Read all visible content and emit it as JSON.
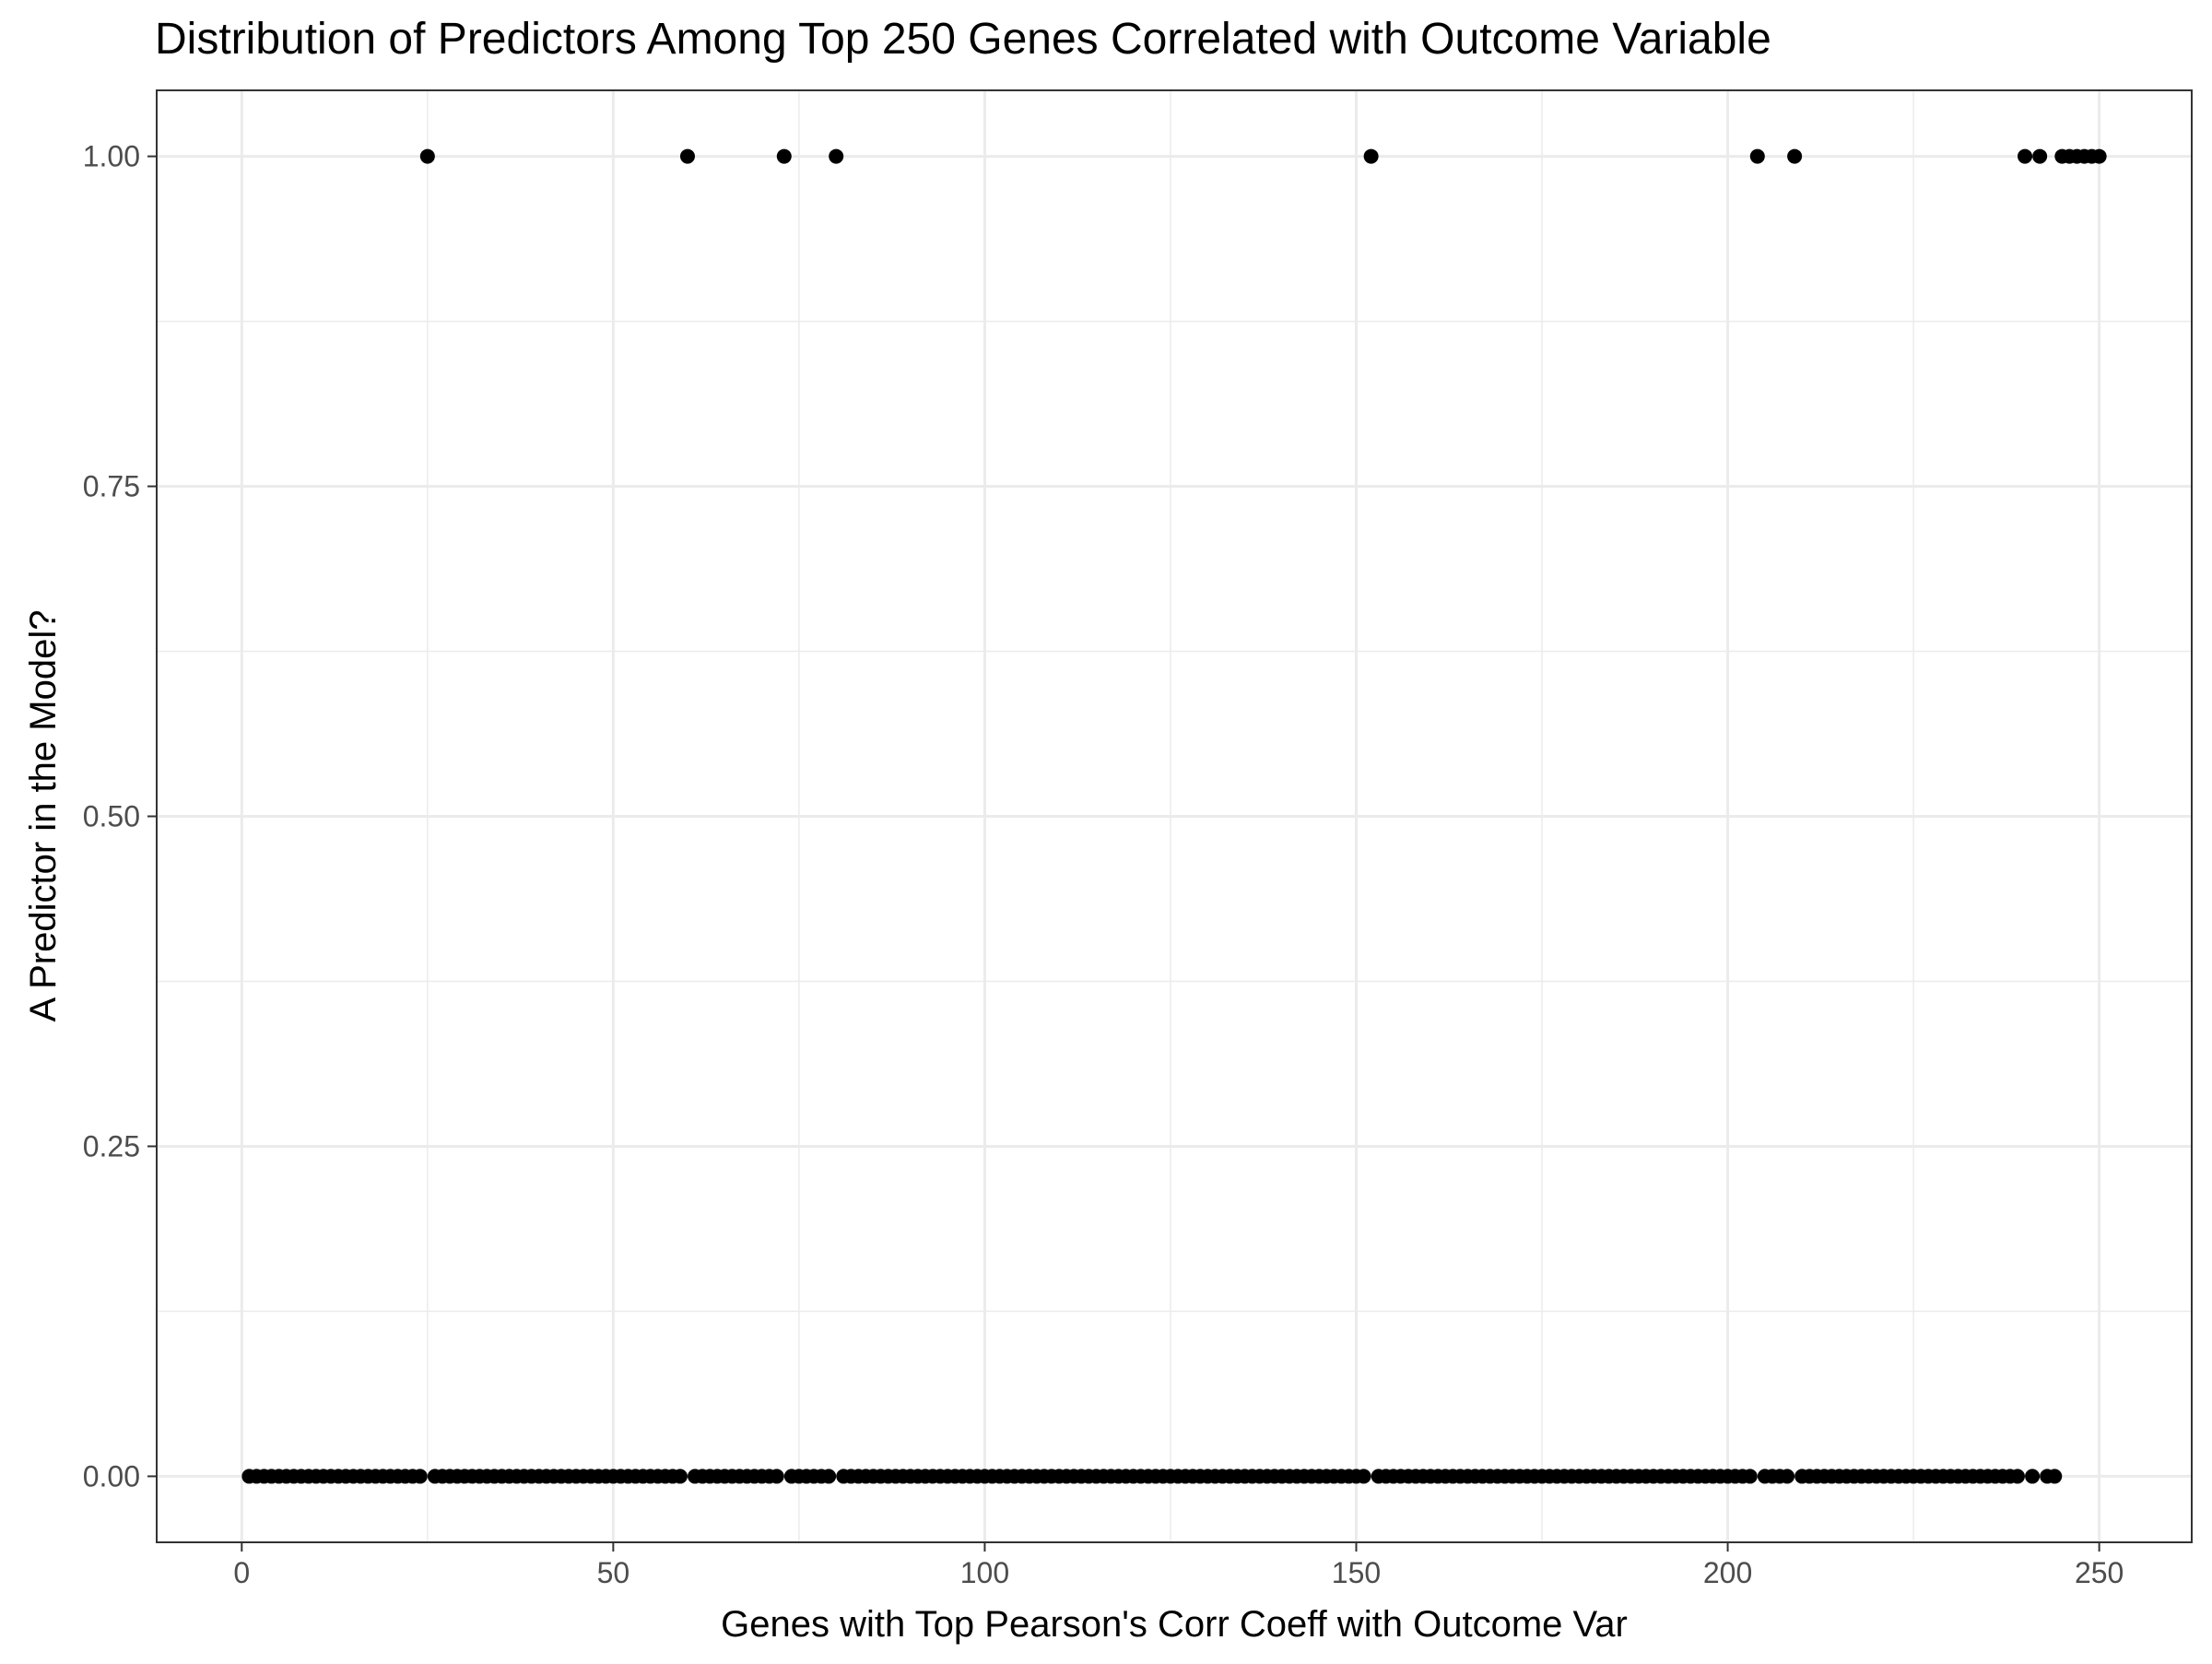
{
  "chart_data": {
    "type": "scatter",
    "title": "Distribution of Predictors Among Top 250 Genes Correlated with Outcome Variable",
    "xlabel": "Genes with Top Pearson's Corr Coeff with Outcome Var",
    "ylabel": "A Predictor in the Model?",
    "xlim": [
      -11.45,
      262.45
    ],
    "ylim": [
      -0.05,
      1.05
    ],
    "x_ticks": [
      0,
      50,
      100,
      150,
      200,
      250
    ],
    "x_tick_labels": [
      "0",
      "50",
      "100",
      "150",
      "200",
      "250"
    ],
    "y_ticks": [
      0,
      0.25,
      0.5,
      0.75,
      1
    ],
    "y_tick_labels": [
      "0.00",
      "0.25",
      "0.50",
      "0.75",
      "1.00"
    ],
    "grid": true,
    "legend": "none",
    "point_color": "#000000",
    "x_range": [
      1,
      250
    ],
    "predictor_genes": [
      25,
      60,
      73,
      80,
      152,
      204,
      209,
      240,
      242,
      245,
      246,
      247,
      248,
      249,
      250
    ]
  }
}
